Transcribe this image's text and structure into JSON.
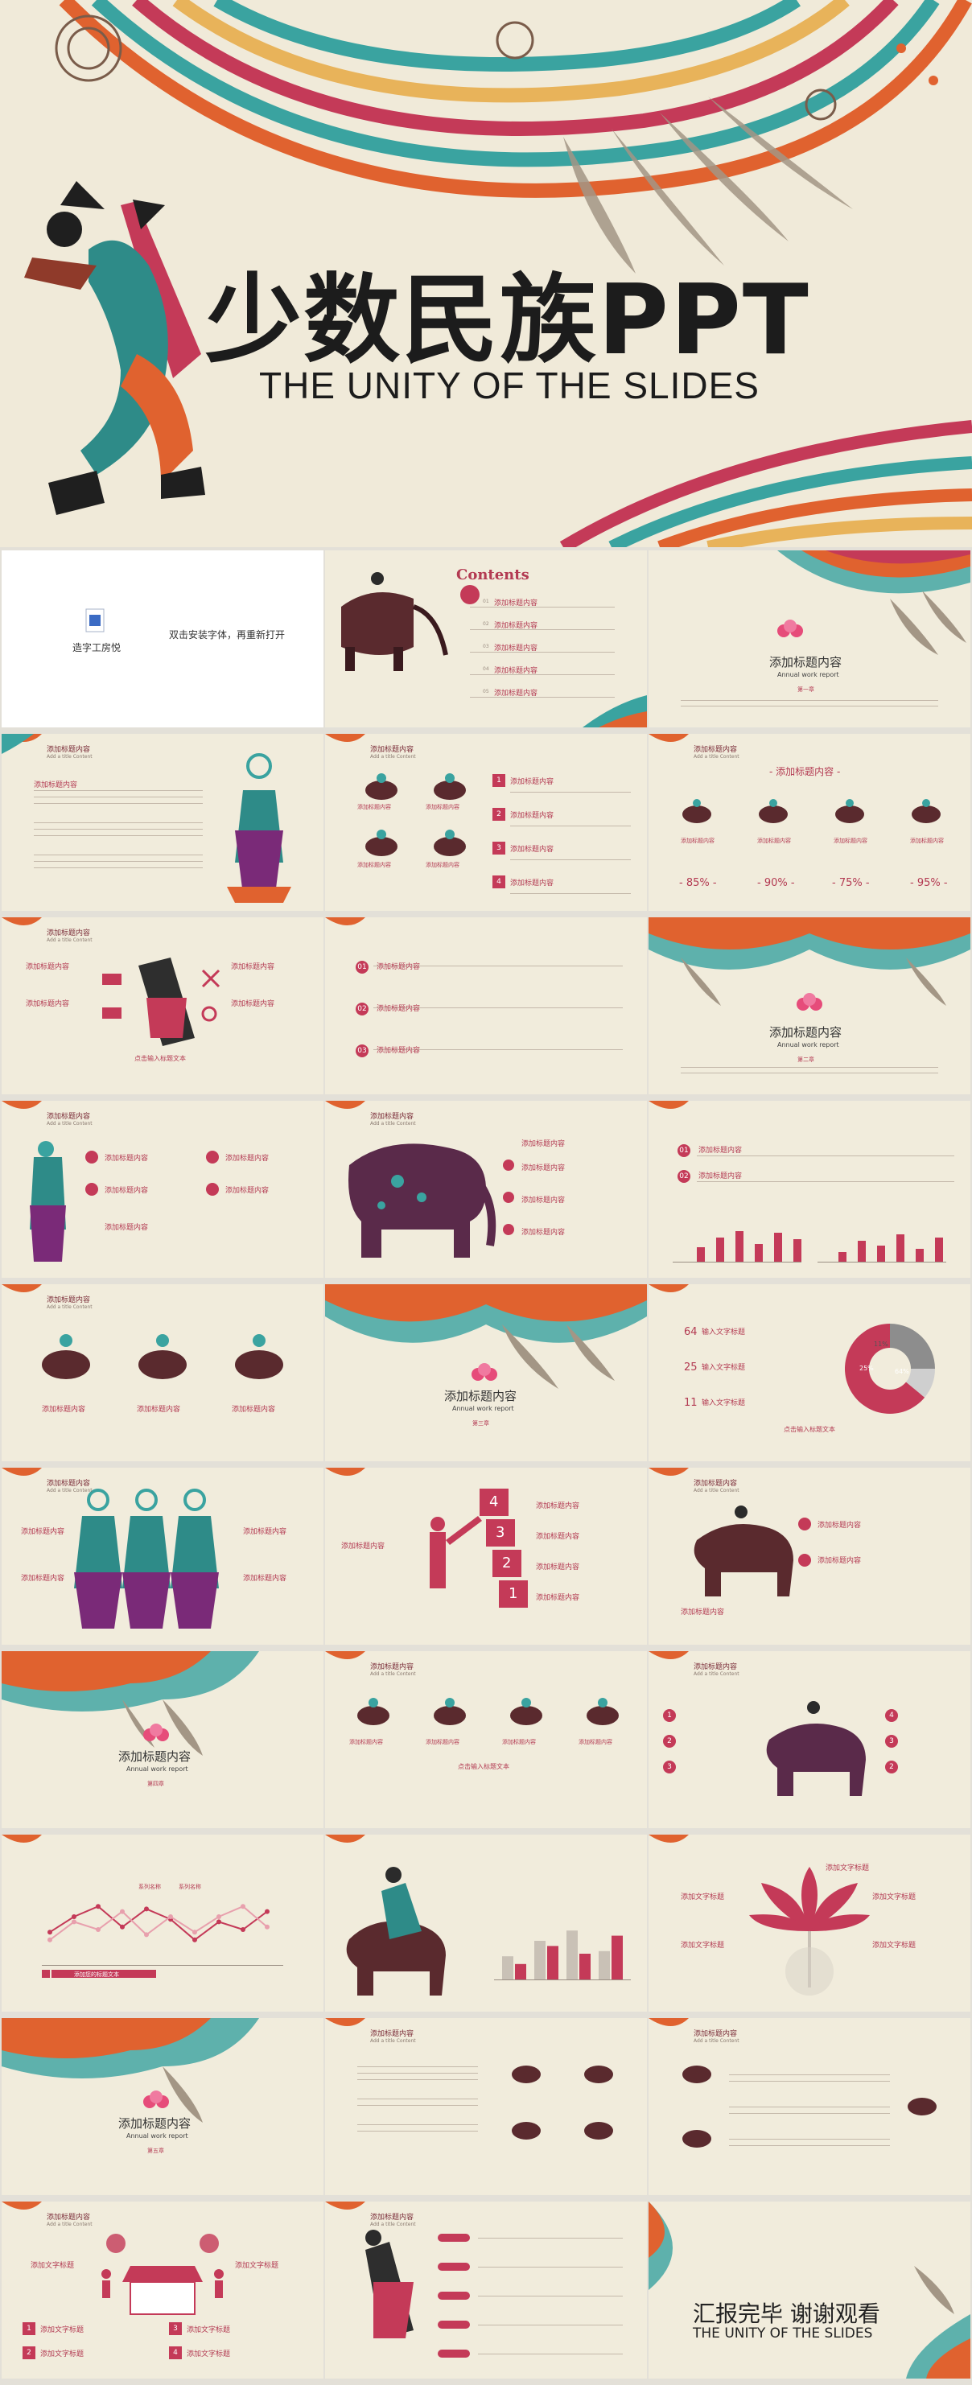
{
  "hero": {
    "title": "少数民族PPT",
    "subtitle": "THE UNITY OF THE SLIDES"
  },
  "font_slide": {
    "font_name": "造字工房悦",
    "instruction": "双击安装字体，再重新打开",
    "icon": "font-file-icon"
  },
  "contents": {
    "title": "Contents",
    "items": [
      "添加标题内容",
      "添加标题内容",
      "添加标题内容",
      "添加标题内容",
      "添加标题内容"
    ],
    "numbers": [
      "01",
      "02",
      "03",
      "04",
      "05"
    ]
  },
  "section": {
    "title": "添加标题内容",
    "subtitle": "Annual work report",
    "parts": [
      "第一章",
      "第二章",
      "第三章",
      "第四章",
      "第五章"
    ]
  },
  "corner": {
    "title": "添加标题内容",
    "subtitle": "Add a title Content"
  },
  "common": {
    "label": "添加标题内容",
    "click_text": "点击输入标题文本",
    "text_title": "添加文字标题",
    "input_text": "输入文字标题",
    "dash_title": "- 添加标题内容 -",
    "numbers": [
      "1",
      "2",
      "3",
      "4"
    ],
    "circle_numbers": [
      "01",
      "02",
      "03"
    ]
  },
  "percentages": [
    "- 85% -",
    "- 90% -",
    "- 75% -",
    "- 95% -"
  ],
  "input_stats": [
    "64",
    "25",
    "11"
  ],
  "pie": {
    "labels": [
      "64%",
      "25%",
      "11%"
    ],
    "values": [
      64,
      25,
      11
    ],
    "colors": [
      "#c43a58",
      "#8d8d8d",
      "#cfcfcf"
    ]
  },
  "stairs": [
    "4",
    "3",
    "2",
    "1"
  ],
  "bars_a": [
    18,
    30,
    38,
    22,
    36,
    28
  ],
  "bars_b": [
    12,
    26,
    20,
    34,
    16,
    30
  ],
  "line_legend": [
    "系列名称",
    "系列名称"
  ],
  "line_banner": "添加您的标题文本",
  "end": {
    "title": "汇报完毕 谢谢观看",
    "subtitle": "THE UNITY OF THE SLIDES"
  },
  "colors": {
    "accent": "#c43a58",
    "background": "#f1ecdc",
    "teal": "#3aa3a0",
    "orange": "#e0622f"
  }
}
